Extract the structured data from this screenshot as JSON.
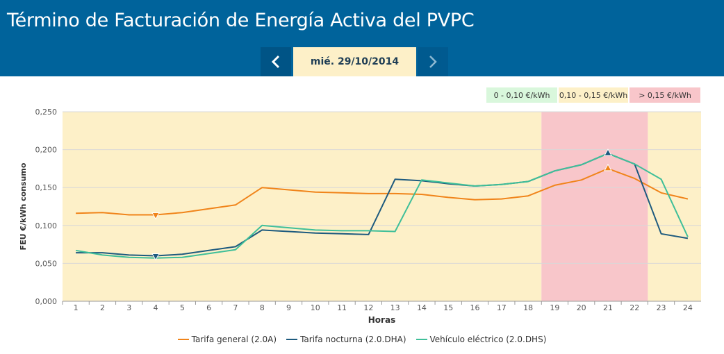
{
  "header": {
    "title": "Término de Facturación de Energía Activa del PVPC",
    "date": "mié. 29/10/2014"
  },
  "range_legend": [
    "0 - 0,10 €/kWh",
    "0,10 - 0,15 €/kWh",
    "> 0,15 €/kWh"
  ],
  "colors": {
    "low": "#d9f7dc",
    "mid": "#fdf0c8",
    "high": "#f8c6ca",
    "general": "#f0841a",
    "nocturna": "#1d5a7e",
    "vehiculo": "#3fbf99"
  },
  "chart_data": {
    "type": "line",
    "xlabel": "Horas",
    "ylabel": "FEU €/kWh consumo",
    "categories": [
      "1",
      "2",
      "3",
      "4",
      "5",
      "6",
      "7",
      "8",
      "9",
      "10",
      "11",
      "12",
      "13",
      "14",
      "15",
      "16",
      "17",
      "18",
      "19",
      "20",
      "21",
      "22",
      "23",
      "24"
    ],
    "ylim": [
      0,
      0.25
    ],
    "yticks": [
      "0,000",
      "0,050",
      "0,100",
      "0,150",
      "0,200",
      "0,250"
    ],
    "grid": true,
    "legend": "bottom",
    "series": [
      {
        "name": "Tarifa general (2.0A)",
        "values": [
          0.116,
          0.117,
          0.114,
          0.114,
          0.117,
          0.122,
          0.127,
          0.15,
          0.147,
          0.144,
          0.143,
          0.142,
          0.142,
          0.141,
          0.137,
          0.134,
          0.135,
          0.139,
          0.153,
          0.16,
          0.175,
          0.162,
          0.143,
          0.135
        ]
      },
      {
        "name": "Tarifa nocturna (2.0.DHA)",
        "values": [
          0.064,
          0.064,
          0.061,
          0.06,
          0.062,
          0.067,
          0.072,
          0.094,
          0.092,
          0.09,
          0.089,
          0.088,
          0.161,
          0.159,
          0.155,
          0.152,
          0.154,
          0.158,
          0.172,
          0.18,
          0.195,
          0.181,
          0.089,
          0.083
        ]
      },
      {
        "name": "Vehículo eléctrico (2.0.DHS)",
        "values": [
          0.067,
          0.061,
          0.058,
          0.057,
          0.058,
          0.063,
          0.068,
          0.1,
          0.097,
          0.094,
          0.093,
          0.093,
          0.092,
          0.16,
          0.156,
          0.152,
          0.154,
          0.158,
          0.172,
          0.18,
          0.195,
          0.181,
          0.161,
          0.085
        ]
      }
    ],
    "bands": [
      {
        "level": "mid",
        "from": 1,
        "to": 18
      },
      {
        "level": "high",
        "from": 19,
        "to": 22
      },
      {
        "level": "mid",
        "from": 23,
        "to": 24
      }
    ],
    "markers": [
      {
        "series": 0,
        "hour": "4",
        "shape": "min"
      },
      {
        "series": 1,
        "hour": "4",
        "shape": "min"
      },
      {
        "series": 0,
        "hour": "21",
        "shape": "max"
      },
      {
        "series": 1,
        "hour": "21",
        "shape": "max"
      }
    ]
  }
}
